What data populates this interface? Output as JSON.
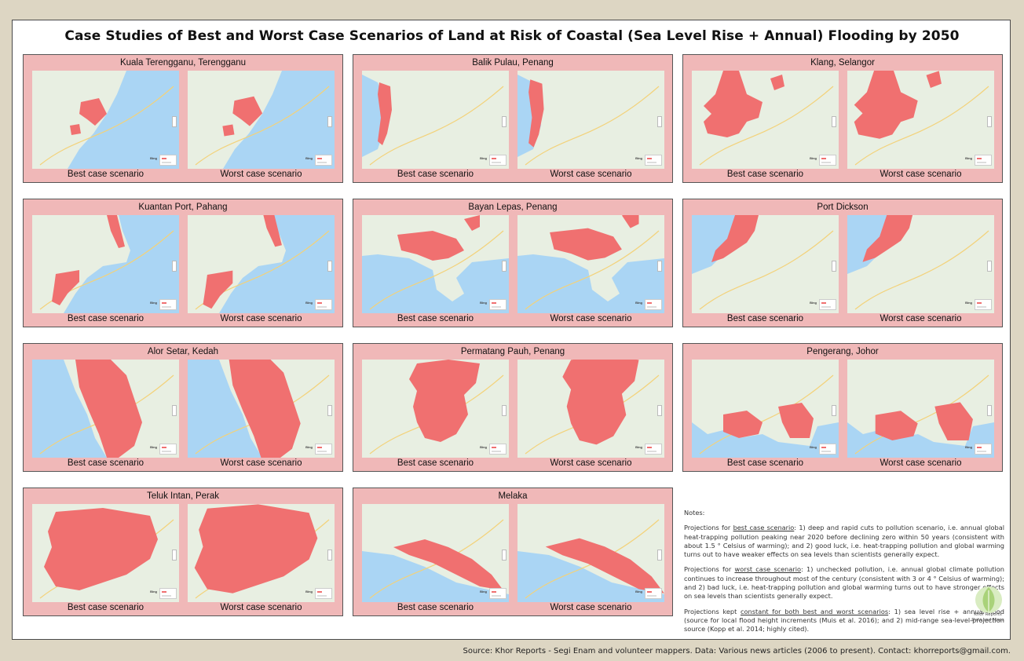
{
  "title": "Case Studies of Best and Worst Case Scenarios of Land at Risk of Coastal (Sea Level Rise + Annual) Flooding by 2050",
  "captions": {
    "best": "Best case scenario",
    "worst": "Worst case scenario"
  },
  "map_attribution": "Bing",
  "panels": [
    {
      "location": "Kuala Terengganu, Terengganu"
    },
    {
      "location": "Balik Pulau, Penang"
    },
    {
      "location": "Klang, Selangor"
    },
    {
      "location": "Kuantan Port, Pahang"
    },
    {
      "location": "Bayan Lepas, Penang"
    },
    {
      "location": "Port Dickson"
    },
    {
      "location": "Alor Setar, Kedah"
    },
    {
      "location": "Permatang Pauh, Penang"
    },
    {
      "location": "Pengerang, Johor"
    },
    {
      "location": "Teluk Intan, Perak"
    },
    {
      "location": "Melaka"
    }
  ],
  "notes": {
    "heading": "Notes:",
    "best_prefix": "Projections for ",
    "best_link": "best case scenario",
    "best_text": ": 1) deep and rapid cuts to pollution scenario, i.e. annual global heat-trapping pollution peaking near 2020 before declining zero within 50 years (consistent with about 1.5 ° Celsius of warming); and 2) good luck, i.e. heat-trapping pollution and global warming turns out to have weaker effects on sea levels than scientists generally expect.",
    "worst_prefix": "Projections for ",
    "worst_link": "worst case scenario",
    "worst_text": ": 1) unchecked pollution, i.e. annual global climate pollution continues to increase throughout most of the century (consistent with 3 or 4 ° Celsius of warming); and 2) bad luck, i.e. heat-trapping pollution and global warming turns out to have stronger effects on sea levels than scientists generally expect.",
    "const_prefix": "Projections kept ",
    "const_link": "constant for both best and worst scenarios",
    "const_text": ": 1) sea level rise + annual flood (source for local flood height increments (Muis et al. 2016); and 2) mid-range sea-level-projection source (Kopp et al. 2014; highly cited)."
  },
  "logo": {
    "line1": "Khor Reports",
    "line2": "Data and Maps"
  },
  "footer": "Source: Khor Reports - Segi Enam and volunteer mappers. Data: Various news articles (2006 to present). Contact: khorreports@gmail.com.",
  "colors": {
    "flood": "#f07070",
    "sea": "#aad5f4",
    "land": "#e8efe2",
    "panel": "#f0b8b8",
    "background": "#ddd6c3"
  }
}
